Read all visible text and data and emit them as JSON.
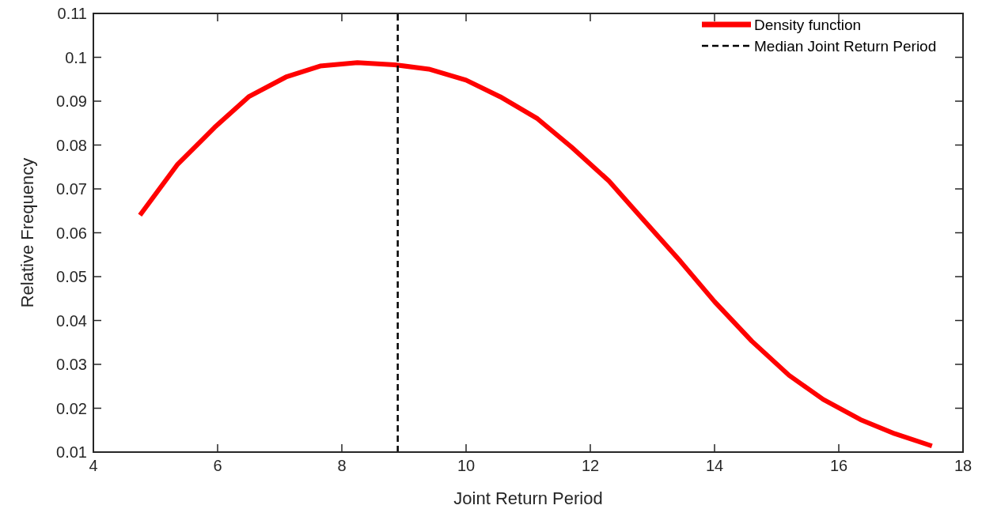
{
  "chart_data": {
    "type": "line",
    "xlabel": "Joint Return Period",
    "ylabel": "Relative Frequency",
    "series": [
      {
        "name": "Density function",
        "color": "#ff0000",
        "x": [
          4.75,
          5.35,
          5.95,
          6.5,
          7.1,
          7.65,
          8.25,
          8.85,
          9.4,
          10.0,
          10.55,
          11.15,
          11.7,
          12.3,
          12.85,
          13.45,
          14.0,
          14.6,
          15.2,
          15.75,
          16.35,
          16.9,
          17.5
        ],
        "values": [
          0.064,
          0.0755,
          0.084,
          0.091,
          0.0955,
          0.098,
          0.0988,
          0.0983,
          0.0973,
          0.0948,
          0.091,
          0.086,
          0.0795,
          0.0718,
          0.063,
          0.0535,
          0.0443,
          0.0353,
          0.0275,
          0.022,
          0.0174,
          0.0142,
          0.0114
        ]
      }
    ],
    "ref_lines": [
      {
        "axis": "x",
        "value": 8.9,
        "label": "Median Joint Return Period",
        "color": "#000000",
        "line_style": "dashed"
      }
    ],
    "xlim": [
      4,
      18
    ],
    "xticks": [
      4,
      6,
      8,
      10,
      12,
      14,
      16,
      18
    ],
    "ylim": [
      0.01,
      0.11
    ],
    "yticks": [
      0.01,
      0.02,
      0.03,
      0.04,
      0.05,
      0.06,
      0.07,
      0.08,
      0.09,
      0.1,
      0.11
    ],
    "grid": false,
    "legend": "top right",
    "line_style": "solid",
    "marker": "none"
  }
}
